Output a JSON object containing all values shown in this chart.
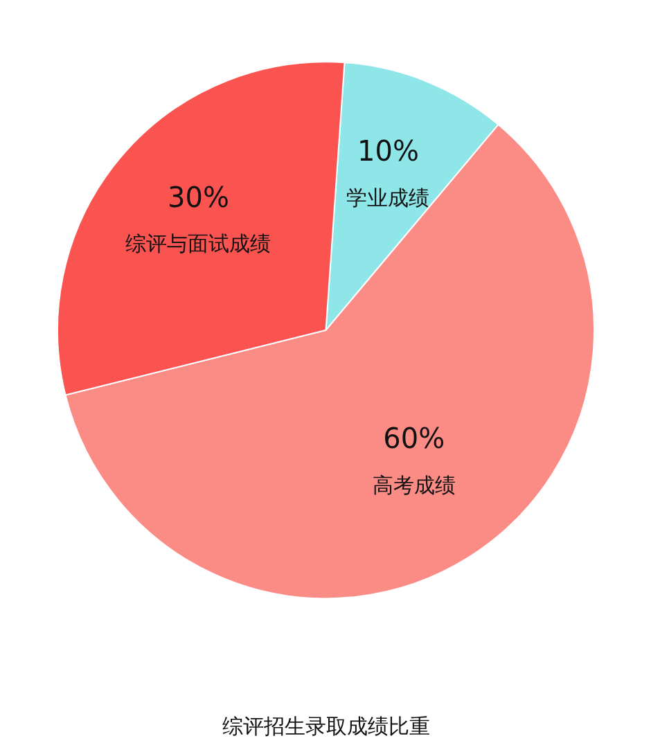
{
  "chart_data": {
    "type": "pie",
    "title": "综评招生录取成绩比重",
    "categories": [
      "学业成绩",
      "高考成绩",
      "综评与面试成绩"
    ],
    "values": [
      10,
      60,
      30
    ],
    "value_labels": [
      "10%",
      "60%",
      "30%"
    ],
    "colors": [
      "#8fe6e8",
      "#fb8b85",
      "#fb5350"
    ]
  }
}
